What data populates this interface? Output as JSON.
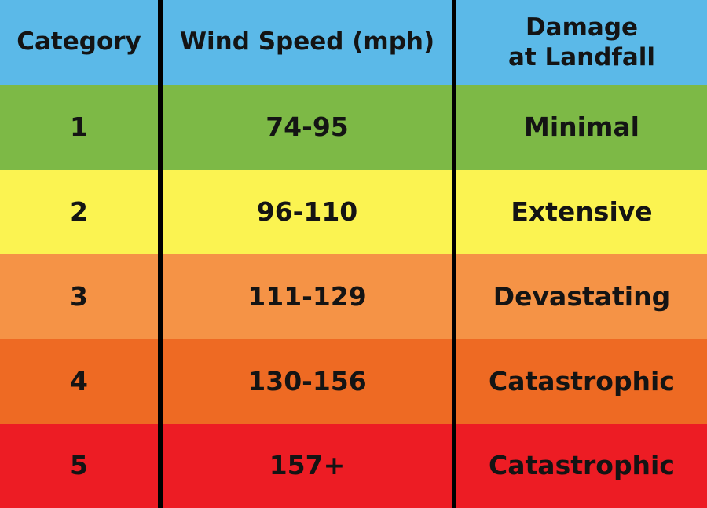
{
  "colors": {
    "header": "#5bb9e8",
    "category_1": "#7db946",
    "category_2": "#fbf351",
    "category_3": "#f59346",
    "category_4": "#ee6a23",
    "category_5": "#ed1c24",
    "divider": "#000000",
    "text": "#141414"
  },
  "table": {
    "headers": {
      "category": "Category",
      "wind_speed": "Wind Speed (mph)",
      "damage_line1": "Damage",
      "damage_line2": "at Landfall"
    },
    "rows": [
      {
        "category": "1",
        "wind_speed": "74-95",
        "damage": "Minimal"
      },
      {
        "category": "2",
        "wind_speed": "96-110",
        "damage": "Extensive"
      },
      {
        "category": "3",
        "wind_speed": "111-129",
        "damage": "Devastating"
      },
      {
        "category": "4",
        "wind_speed": "130-156",
        "damage": "Catastrophic"
      },
      {
        "category": "5",
        "wind_speed": "157+",
        "damage": "Catastrophic"
      }
    ]
  }
}
